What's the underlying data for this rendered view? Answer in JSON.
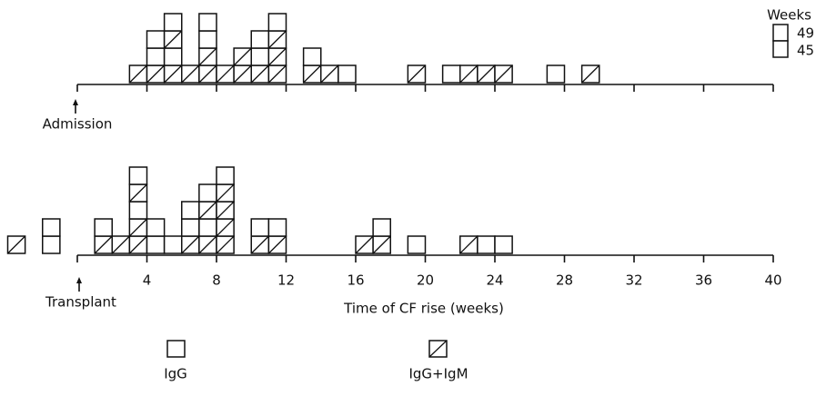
{
  "chart_data": [
    {
      "type": "stacked-box",
      "annotation": "Admission",
      "key": {
        "title": "Weeks",
        "labels": [
          "49",
          "45"
        ]
      },
      "xlim": [
        0,
        40
      ],
      "xticks": [
        4,
        8,
        12,
        16,
        20,
        24,
        28,
        32,
        36,
        40
      ],
      "columns": [
        {
          "x": 3,
          "stack": [
            1
          ]
        },
        {
          "x": 4,
          "stack": [
            1,
            0,
            0
          ]
        },
        {
          "x": 5,
          "stack": [
            1,
            0,
            1,
            0
          ]
        },
        {
          "x": 6,
          "stack": [
            1
          ]
        },
        {
          "x": 7,
          "stack": [
            1,
            1,
            0,
            0
          ]
        },
        {
          "x": 8,
          "stack": [
            1
          ]
        },
        {
          "x": 9,
          "stack": [
            1,
            1
          ]
        },
        {
          "x": 10,
          "stack": [
            1,
            0,
            0
          ]
        },
        {
          "x": 11,
          "stack": [
            1,
            1,
            1,
            0
          ]
        },
        {
          "x": 13,
          "stack": [
            1,
            0
          ]
        },
        {
          "x": 14,
          "stack": [
            1
          ]
        },
        {
          "x": 15,
          "stack": [
            0
          ]
        },
        {
          "x": 19,
          "stack": [
            1
          ]
        },
        {
          "x": 21,
          "stack": [
            0
          ]
        },
        {
          "x": 22,
          "stack": [
            1
          ]
        },
        {
          "x": 23,
          "stack": [
            1
          ]
        },
        {
          "x": 24,
          "stack": [
            1
          ]
        },
        {
          "x": 27,
          "stack": [
            0
          ]
        },
        {
          "x": 29,
          "stack": [
            1
          ]
        }
      ]
    },
    {
      "type": "stacked-box",
      "annotation": "Transplant",
      "xlabel": "Time of CF rise (weeks)",
      "box_types": [
        "IgG",
        "IgG+IgM"
      ],
      "xlim": [
        0,
        40
      ],
      "xticks": [
        4,
        8,
        12,
        16,
        20,
        24,
        28,
        32,
        36,
        40
      ],
      "columns": [
        {
          "x": -4,
          "stack": [
            1
          ]
        },
        {
          "x": -2,
          "stack": [
            0,
            0
          ]
        },
        {
          "x": 1,
          "stack": [
            1,
            0
          ]
        },
        {
          "x": 2,
          "stack": [
            1
          ]
        },
        {
          "x": 3,
          "stack": [
            1,
            1,
            0,
            1,
            0
          ]
        },
        {
          "x": 4,
          "stack": [
            0,
            0
          ]
        },
        {
          "x": 5,
          "stack": [
            0
          ]
        },
        {
          "x": 6,
          "stack": [
            1,
            0,
            0
          ]
        },
        {
          "x": 7,
          "stack": [
            1,
            0,
            1,
            0
          ]
        },
        {
          "x": 8,
          "stack": [
            1,
            1,
            1,
            1,
            0
          ]
        },
        {
          "x": 10,
          "stack": [
            1,
            0
          ]
        },
        {
          "x": 11,
          "stack": [
            1,
            0
          ]
        },
        {
          "x": 16,
          "stack": [
            1
          ]
        },
        {
          "x": 17,
          "stack": [
            1,
            0
          ]
        },
        {
          "x": 19,
          "stack": [
            0
          ]
        },
        {
          "x": 22,
          "stack": [
            1
          ]
        },
        {
          "x": 23,
          "stack": [
            0
          ]
        },
        {
          "x": 24,
          "stack": [
            0
          ]
        }
      ]
    }
  ]
}
